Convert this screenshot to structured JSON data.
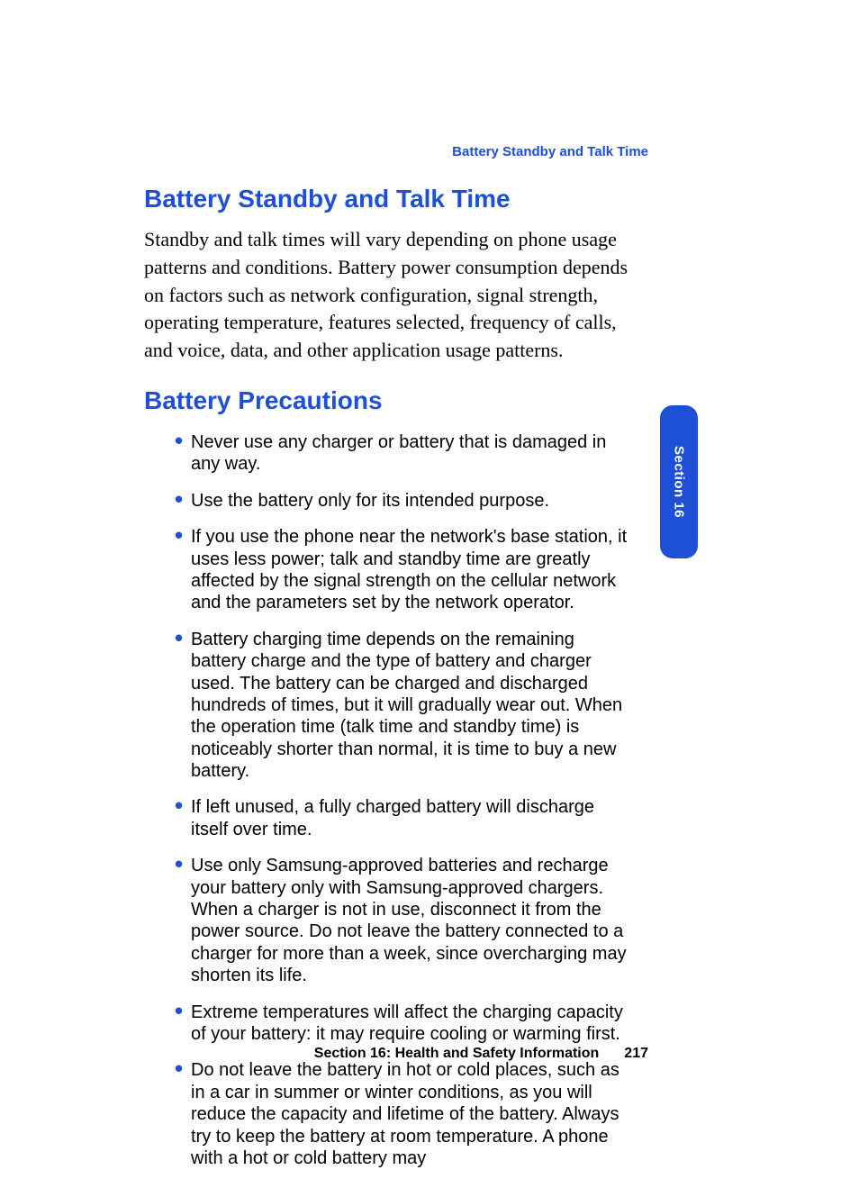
{
  "colors": {
    "accent": "#1d4fd7",
    "text": "#000000",
    "background": "#ffffff",
    "tab_text": "#ffffff"
  },
  "typography": {
    "heading_font": "Arial",
    "heading_weight": 700,
    "heading_size_pt": 21,
    "body_serif_font": "Palatino",
    "body_serif_size_pt": 16,
    "bullet_font": "Arial",
    "bullet_size_pt": 15,
    "footer_size_pt": 12,
    "running_head_size_pt": 11
  },
  "running_head": "Battery Standby and Talk Time",
  "heading1": "Battery Standby and Talk Time",
  "paragraph1": "Standby and talk times will vary depending on phone usage patterns and conditions.  Battery power consumption depends on factors such as network configuration, signal strength, operating temperature, features selected, frequency of calls, and voice, data, and other application usage patterns.",
  "heading2": "Battery Precautions",
  "bullets": [
    "Never use any charger or battery that is damaged in any way.",
    "Use the battery only for its intended purpose.",
    "If you use the phone near the network's base station, it uses less power; talk and standby time are greatly affected by the signal strength on the cellular network and the parameters set by the network operator.",
    "Battery charging time depends on the remaining battery charge and the type of battery and charger used. The battery can be charged and discharged hundreds of times, but it will gradually wear out. When the operation time (talk time and standby time) is noticeably shorter than normal, it is time to buy a new battery.",
    "If left unused, a fully charged battery will discharge itself over time.",
    "Use only Samsung-approved batteries and recharge your battery only with Samsung-approved chargers. When a charger is not in use, disconnect it from the power source. Do not leave the battery connected to a charger for more than a week, since overcharging may shorten its life.",
    "Extreme temperatures will affect the charging capacity of your battery: it may require cooling or warming first.",
    "Do not leave the battery in hot or cold places, such as in a car in summer or winter conditions, as you will reduce the capacity and lifetime of the battery. Always try to keep the battery at room temperature. A phone with a hot or cold battery may"
  ],
  "footer": {
    "section_label": "Section 16: Health and Safety Information",
    "page_number": "217"
  },
  "side_tab": "Section 16"
}
